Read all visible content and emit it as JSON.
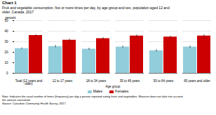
{
  "chart_data": {
    "type": "bar",
    "title": "Chart 1",
    "subtitle": [
      "Fruit and vegetable consumption, five or more times per day, by age group and sex, population aged 12 and",
      "older, Canada, 2017"
    ],
    "ylabel": "percent",
    "xlabel": "Age group",
    "categories": [
      "Total (12 years and\nolder)",
      "12 to 17 years",
      "18 to 34 years",
      "35 to 49 years",
      "50 to 64 years",
      "65 years and older"
    ],
    "series": [
      {
        "name": "Males",
        "color": "#92CDDC",
        "values": [
          23.5,
          25.5,
          23.0,
          25.0,
          21.5,
          25.0
        ],
        "errors": [
          0.8,
          1.2,
          1.0,
          1.1,
          1.0,
          1.2
        ]
      },
      {
        "name": "Females",
        "color": "#CC0000",
        "values": [
          36.0,
          31.5,
          33.0,
          35.5,
          34.5,
          35.5
        ],
        "errors": [
          0.8,
          1.2,
          1.0,
          1.1,
          1.0,
          1.2
        ]
      }
    ],
    "ylim": [
      0,
      50
    ],
    "yticks": [
      0,
      10,
      20,
      30,
      40,
      50
    ],
    "grid": true,
    "legend": "bottom",
    "notes": [
      "Note: Indicates the usual number of times (frequency) per day a person reported eating fruits and vegetables. Measure does not take into account",
      "the amount consumed."
    ],
    "source": "Source: Canadian Community Health Survey, 2017."
  }
}
